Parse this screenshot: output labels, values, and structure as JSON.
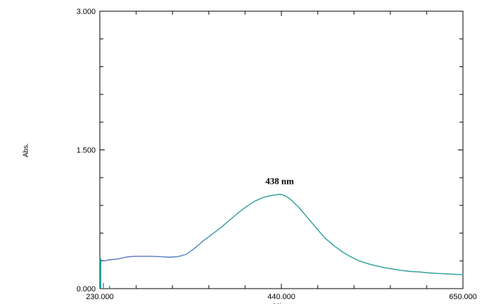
{
  "chart_data": {
    "type": "line",
    "title": "",
    "xlabel": "nm",
    "ylabel": "Abs.",
    "xlim": [
      230,
      650
    ],
    "ylim": [
      0,
      3
    ],
    "x_ticks": [
      230,
      440,
      650
    ],
    "x_tick_labels": [
      "230.000",
      "440.000",
      "650.000"
    ],
    "y_ticks": [
      0,
      1.5,
      3
    ],
    "y_tick_labels": [
      "0.000",
      "1.500",
      "3.000"
    ],
    "x_minor_ticks": [
      272,
      314,
      356,
      398,
      482,
      524,
      566,
      608
    ],
    "y_minor_ticks": [
      0.3,
      0.6,
      0.9,
      1.2,
      1.8,
      2.1,
      2.4,
      2.7
    ],
    "grid": false,
    "legend": "none",
    "annotations": [
      {
        "text": "438 nm",
        "x": 438,
        "y": 1.13
      }
    ],
    "series": [
      {
        "color": "#2a9d9a",
        "color_start": "#5b6ec9",
        "x": [
          230,
          235,
          240,
          250,
          260,
          270,
          280,
          290,
          300,
          310,
          320,
          330,
          340,
          350,
          360,
          370,
          380,
          390,
          400,
          410,
          420,
          430,
          435,
          438,
          441,
          445,
          450,
          460,
          470,
          480,
          490,
          500,
          510,
          520,
          530,
          540,
          550,
          560,
          570,
          580,
          590,
          600,
          610,
          620,
          630,
          640,
          650
        ],
        "y": [
          0.31,
          0.3,
          0.31,
          0.32,
          0.34,
          0.35,
          0.35,
          0.35,
          0.345,
          0.34,
          0.345,
          0.37,
          0.44,
          0.52,
          0.59,
          0.66,
          0.74,
          0.82,
          0.89,
          0.95,
          0.99,
          1.01,
          1.015,
          1.02,
          1.015,
          1.0,
          0.97,
          0.88,
          0.77,
          0.66,
          0.55,
          0.47,
          0.4,
          0.345,
          0.3,
          0.27,
          0.245,
          0.225,
          0.21,
          0.195,
          0.185,
          0.18,
          0.17,
          0.165,
          0.16,
          0.155,
          0.15
        ]
      }
    ]
  }
}
